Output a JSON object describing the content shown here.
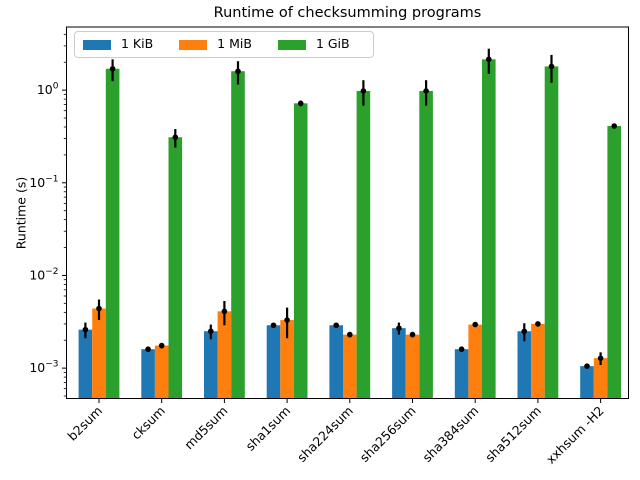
{
  "chart_data": {
    "type": "bar",
    "title": "Runtime of checksumming programs",
    "ylabel": "Runtime (s)",
    "xlabel": "",
    "yscale": "log",
    "ylim": [
      0.00047,
      4.8
    ],
    "yticks": [
      "10^0",
      "10^-1",
      "10^-2",
      "10^-3"
    ],
    "grid": false,
    "legend_position": "upper left",
    "legend_labels": [
      "1 KiB",
      "1 MiB",
      "1 GiB"
    ],
    "categories": [
      "b2sum",
      "cksum",
      "md5sum",
      "sha1sum",
      "sha224sum",
      "sha256sum",
      "sha384sum",
      "sha512sum",
      "xxhsum -H2"
    ],
    "series": [
      {
        "name": "1 KiB",
        "color": "#1f77b4",
        "values": [
          0.0026,
          0.0016,
          0.0025,
          0.0029,
          0.0029,
          0.0027,
          0.0016,
          0.0025,
          0.00105
        ],
        "errors": [
          0.0005,
          0.0001,
          0.00045,
          0.00012,
          0.00012,
          0.0004,
          0.0001,
          0.00055,
          6e-05
        ]
      },
      {
        "name": "1 MiB",
        "color": "#ff7f0e",
        "values": [
          0.0044,
          0.00175,
          0.0041,
          0.0033,
          0.0023,
          0.0023,
          0.00295,
          0.003,
          0.00128
        ],
        "errors": [
          0.0011,
          0.00012,
          0.0012,
          0.0012,
          0.00015,
          0.00015,
          0.00017,
          0.00015,
          0.0002
        ]
      },
      {
        "name": "1 GiB",
        "color": "#2ca02c",
        "values": [
          1.7,
          0.31,
          1.6,
          0.72,
          0.98,
          0.98,
          2.15,
          1.8,
          0.41
        ],
        "errors": [
          0.45,
          0.07,
          0.45,
          0.05,
          0.3,
          0.3,
          0.65,
          0.6,
          0.02
        ]
      }
    ],
    "error_color": "#000000"
  }
}
